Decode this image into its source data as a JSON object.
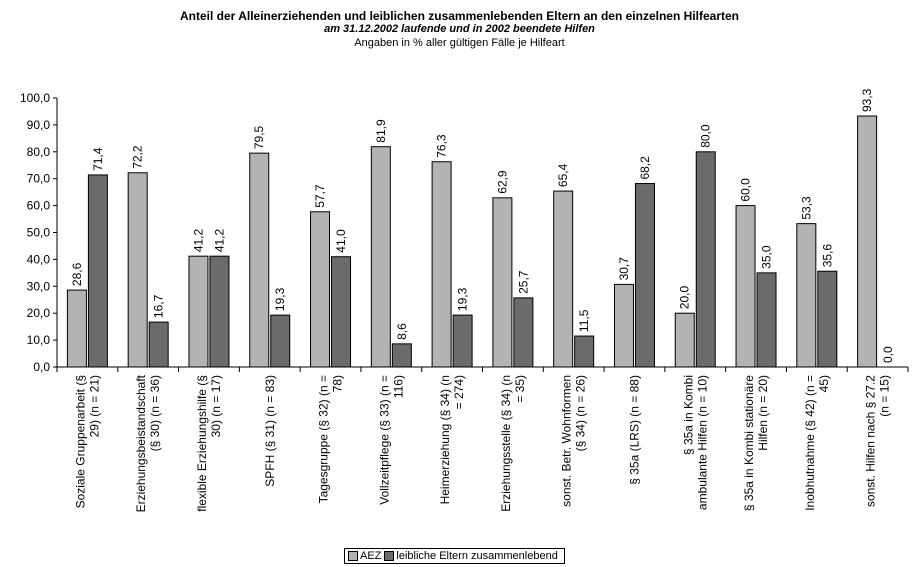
{
  "title": "Anteil der Alleinerziehenden und leiblichen zusammenlebenden Eltern an den einzelnen Hilfearten",
  "subtitle": "am 31.12.2002 laufende und in 2002 beendete Hilfen",
  "note": "Angaben in % aller gültigen Fälle je Hilfeart",
  "chart_data": {
    "type": "bar",
    "title": "Anteil der Alleinerziehenden und leiblichen zusammenlebenden Eltern an den einzelnen Hilfearten",
    "subtitle": "am 31.12.2002 laufende und in 2002 beendete Hilfen",
    "ylabel": "",
    "xlabel": "",
    "ylim": [
      0,
      100
    ],
    "yticks": [
      "0,0",
      "10,0",
      "20,0",
      "30,0",
      "40,0",
      "50,0",
      "60,0",
      "70,0",
      "80,0",
      "90,0",
      "100,0"
    ],
    "grid": false,
    "legend_position": "bottom",
    "categories": [
      [
        "Soziale Gruppenarbeit (§",
        "29) (n = 21)"
      ],
      [
        "Erziehungsbeistandschaft",
        "(§ 30) (n = 36)"
      ],
      [
        "flexible Erziehungshilfe (§",
        "30) (n = 17)"
      ],
      [
        "SPFH (§ 31) (n = 83)"
      ],
      [
        "Tagesgruppe (§ 32) (n =",
        "78)"
      ],
      [
        "Vollzeitpflege (§ 33) (n =",
        "116)"
      ],
      [
        "Heimerziehung (§ 34) (n",
        "= 274)"
      ],
      [
        "Erziehungsstelle (§ 34) (n",
        "= 35)"
      ],
      [
        "sonst. Betr. Wohnformen",
        "(§ 34) (n = 26)"
      ],
      [
        "§ 35a (LRS) (n = 88)"
      ],
      [
        "§ 35a in Kombi",
        "ambulante Hilfen (n = 10)"
      ],
      [
        "§ 35a in Kombi stationäre",
        "Hilfen (n = 20)"
      ],
      [
        "Inobhutnahme (§ 42) (n =",
        "45)"
      ],
      [
        "sonst. Hilfen nach § 27.2",
        "(n = 15)"
      ]
    ],
    "series": [
      {
        "name": "AEZ",
        "color": "#b3b3b3",
        "values": [
          28.6,
          72.2,
          41.2,
          79.5,
          57.7,
          81.9,
          76.3,
          62.9,
          65.4,
          30.7,
          20.0,
          60.0,
          53.3,
          93.3
        ],
        "labels": [
          "28,6",
          "72,2",
          "41,2",
          "79,5",
          "57,7",
          "81,9",
          "76,3",
          "62,9",
          "65,4",
          "30,7",
          "20,0",
          "60,0",
          "53,3",
          "93,3"
        ]
      },
      {
        "name": "leibliche Eltern zusammenlebend",
        "color": "#6b6b6b",
        "values": [
          71.4,
          16.7,
          41.2,
          19.3,
          41.0,
          8.6,
          19.3,
          25.7,
          11.5,
          68.2,
          80.0,
          35.0,
          35.6,
          0.0
        ],
        "labels": [
          "71,4",
          "16,7",
          "41,2",
          "19,3",
          "41,0",
          "8,6",
          "19,3",
          "25,7",
          "11,5",
          "68,2",
          "80,0",
          "35,0",
          "35,6",
          "0,0"
        ]
      }
    ]
  }
}
